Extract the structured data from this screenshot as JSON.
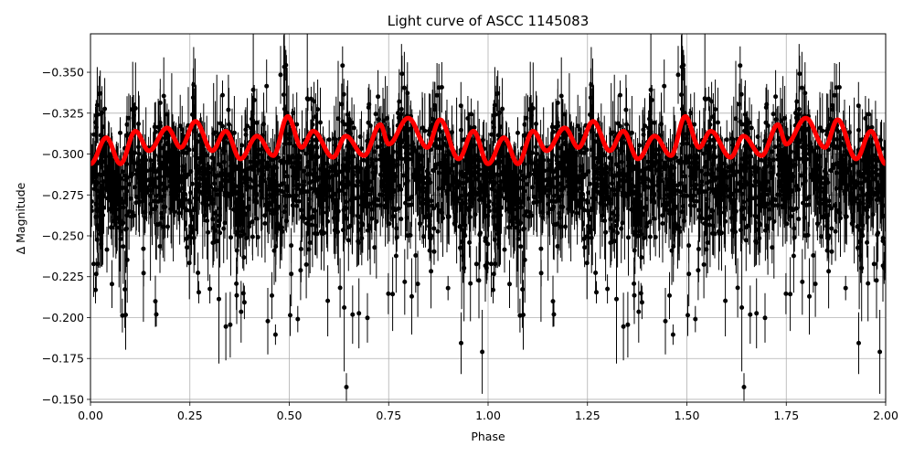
{
  "chart_data": {
    "type": "scatter",
    "title": "Light curve of ASCC 1145083",
    "xlabel": "Phase",
    "ylabel": "Δ Magnitude",
    "xlim": [
      0.0,
      2.0
    ],
    "ylim": [
      -0.1483,
      -0.3735
    ],
    "y_inverted": true,
    "grid": true,
    "legend": null,
    "xticks": [
      "0.00",
      "0.25",
      "0.50",
      "0.75",
      "1.00",
      "1.25",
      "1.50",
      "1.75",
      "2.00"
    ],
    "xtick_values": [
      0.0,
      0.25,
      0.5,
      0.75,
      1.0,
      1.25,
      1.5,
      1.75,
      2.0
    ],
    "yticks": [
      "−0.350",
      "−0.325",
      "−0.300",
      "−0.275",
      "−0.250",
      "−0.225",
      "−0.200",
      "−0.175",
      "−0.150"
    ],
    "ytick_values": [
      -0.35,
      -0.325,
      -0.3,
      -0.275,
      -0.25,
      -0.225,
      -0.2,
      -0.175,
      -0.15
    ],
    "series": [
      {
        "name": "observations",
        "kind": "errorbar-scatter",
        "color": "#000000",
        "description": "Dense phase-folded photometry with error bars, repeated over two cycles; bulk of points between -0.33 and -0.25, scatter extending to -0.37 and -0.15",
        "typical_range": [
          -0.37,
          -0.15
        ],
        "core_range": [
          -0.335,
          -0.26
        ]
      },
      {
        "name": "model",
        "kind": "line",
        "color": "#ff0000",
        "linewidth": 4,
        "phase": [
          0.0,
          0.04,
          0.075,
          0.113,
          0.147,
          0.193,
          0.227,
          0.264,
          0.306,
          0.34,
          0.377,
          0.419,
          0.46,
          0.496,
          0.531,
          0.56,
          0.61,
          0.642,
          0.688,
          0.729,
          0.75,
          0.799,
          0.847,
          0.879,
          0.926,
          0.963,
          1.0
        ],
        "magnitude": [
          -0.294,
          -0.31,
          -0.294,
          -0.314,
          -0.302,
          -0.316,
          -0.304,
          -0.32,
          -0.302,
          -0.314,
          -0.297,
          -0.311,
          -0.299,
          -0.323,
          -0.304,
          -0.314,
          -0.298,
          -0.311,
          -0.299,
          -0.318,
          -0.306,
          -0.322,
          -0.304,
          -0.321,
          -0.297,
          -0.314,
          -0.294
        ]
      }
    ]
  }
}
